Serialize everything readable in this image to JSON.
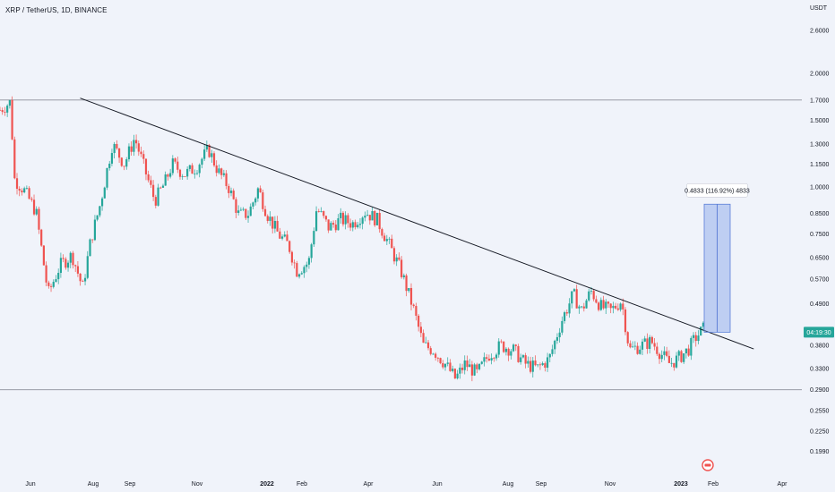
{
  "header": {
    "pair_title": "XRP / TetherUS, 1D, BINANCE",
    "currency": "USDT"
  },
  "chart_data": {
    "type": "candlestick",
    "title": "XRP / TetherUS, 1D, BINANCE",
    "ylabel": "USDT",
    "yscale": "log",
    "ylim": [
      0.185,
      2.9
    ],
    "y_ticks": [
      "2.6000",
      "2.0000",
      "1.7000",
      "1.5000",
      "1.3000",
      "1.1500",
      "1.0000",
      "0.8500",
      "0.7500",
      "0.6500",
      "0.5700",
      "0.4900",
      "0.3800",
      "0.3300",
      "0.2900",
      "0.2550",
      "0.2250",
      "0.1990"
    ],
    "x_ticks": [
      {
        "label": "Jun",
        "bold": false
      },
      {
        "label": "Aug",
        "bold": false
      },
      {
        "label": "Sep",
        "bold": false
      },
      {
        "label": "Nov",
        "bold": false
      },
      {
        "label": "2022",
        "bold": true
      },
      {
        "label": "Feb",
        "bold": false
      },
      {
        "label": "Apr",
        "bold": false
      },
      {
        "label": "Jun",
        "bold": false
      },
      {
        "label": "Aug",
        "bold": false
      },
      {
        "label": "Sep",
        "bold": false
      },
      {
        "label": "Nov",
        "bold": false
      },
      {
        "label": "2023",
        "bold": true
      },
      {
        "label": "Feb",
        "bold": false
      },
      {
        "label": "Apr",
        "bold": false
      }
    ],
    "horizontal_lines": [
      1.7,
      0.29
    ],
    "trendline": {
      "start": [
        0.1,
        1.72
      ],
      "end": [
        0.94,
        0.372
      ]
    },
    "last_price": "04:19:30",
    "measure": {
      "label": "0.4833 (116.92%) 4833",
      "low": 0.412,
      "high": 0.9
    },
    "candles": {
      "up_color": "#26a69a",
      "down_color": "#ef5350",
      "anchors": [
        [
          0.0,
          1.6
        ],
        [
          0.013,
          1.68
        ],
        [
          0.018,
          1.05
        ],
        [
          0.03,
          0.98
        ],
        [
          0.045,
          0.86
        ],
        [
          0.06,
          0.52
        ],
        [
          0.075,
          0.62
        ],
        [
          0.09,
          0.66
        ],
        [
          0.103,
          0.54
        ],
        [
          0.113,
          0.72
        ],
        [
          0.125,
          0.9
        ],
        [
          0.14,
          1.3
        ],
        [
          0.155,
          1.15
        ],
        [
          0.168,
          1.35
        ],
        [
          0.18,
          1.12
        ],
        [
          0.193,
          0.92
        ],
        [
          0.205,
          1.02
        ],
        [
          0.215,
          1.15
        ],
        [
          0.23,
          1.08
        ],
        [
          0.245,
          1.13
        ],
        [
          0.26,
          1.26
        ],
        [
          0.272,
          1.1
        ],
        [
          0.285,
          1.0
        ],
        [
          0.298,
          0.84
        ],
        [
          0.31,
          0.85
        ],
        [
          0.322,
          0.99
        ],
        [
          0.333,
          0.85
        ],
        [
          0.347,
          0.75
        ],
        [
          0.36,
          0.7
        ],
        [
          0.37,
          0.6
        ],
        [
          0.385,
          0.63
        ],
        [
          0.395,
          0.88
        ],
        [
          0.41,
          0.78
        ],
        [
          0.425,
          0.82
        ],
        [
          0.44,
          0.8
        ],
        [
          0.455,
          0.86
        ],
        [
          0.47,
          0.82
        ],
        [
          0.483,
          0.72
        ],
        [
          0.5,
          0.6
        ],
        [
          0.515,
          0.48
        ],
        [
          0.528,
          0.38
        ],
        [
          0.54,
          0.37
        ],
        [
          0.555,
          0.34
        ],
        [
          0.568,
          0.31
        ],
        [
          0.58,
          0.34
        ],
        [
          0.595,
          0.32
        ],
        [
          0.61,
          0.36
        ],
        [
          0.625,
          0.38
        ],
        [
          0.64,
          0.37
        ],
        [
          0.655,
          0.34
        ],
        [
          0.67,
          0.33
        ],
        [
          0.685,
          0.35
        ],
        [
          0.7,
          0.44
        ],
        [
          0.715,
          0.52
        ],
        [
          0.725,
          0.47
        ],
        [
          0.737,
          0.53
        ],
        [
          0.75,
          0.48
        ],
        [
          0.762,
          0.47
        ],
        [
          0.775,
          0.5
        ],
        [
          0.785,
          0.37
        ],
        [
          0.8,
          0.38
        ],
        [
          0.812,
          0.39
        ],
        [
          0.825,
          0.36
        ],
        [
          0.835,
          0.34
        ],
        [
          0.845,
          0.35
        ],
        [
          0.858,
          0.37
        ],
        [
          0.868,
          0.4
        ],
        [
          0.877,
          0.42
        ]
      ]
    }
  }
}
